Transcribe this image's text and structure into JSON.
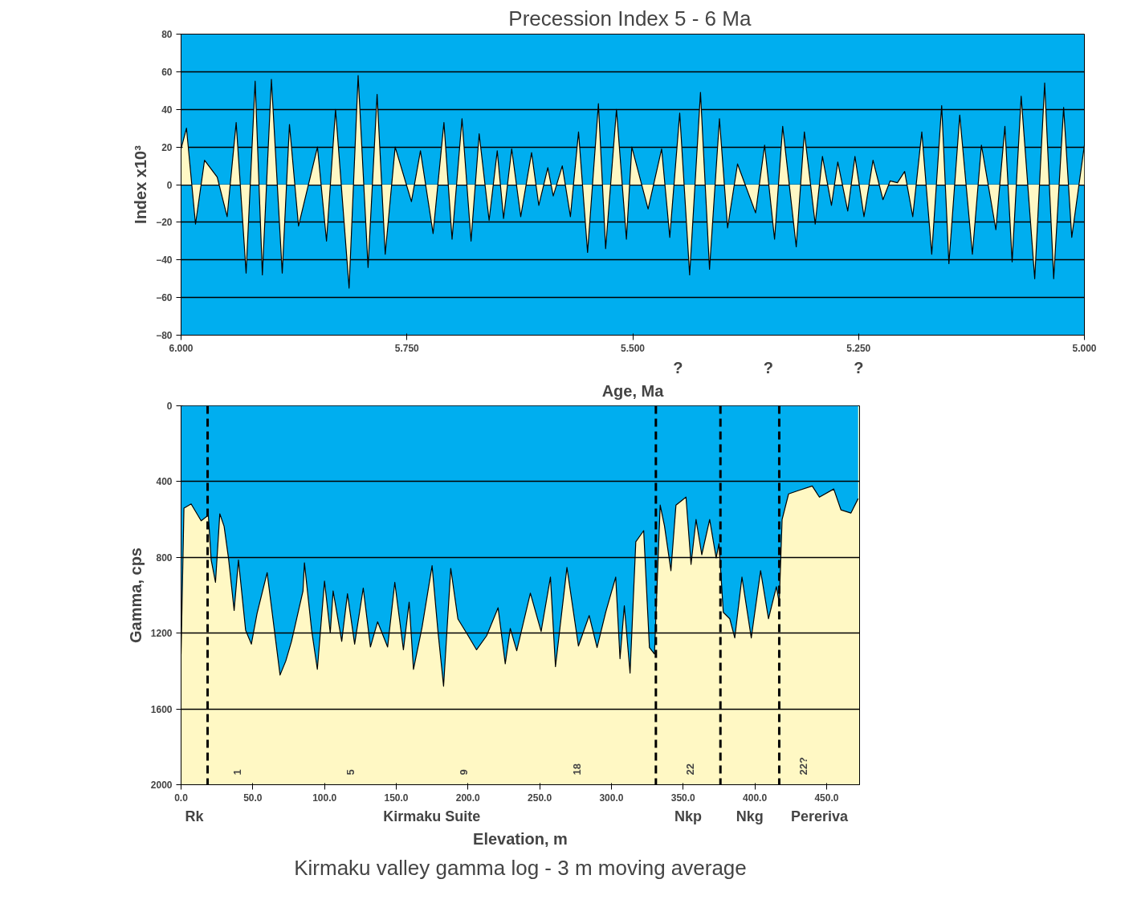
{
  "chart_data": [
    {
      "type": "area",
      "title": "Precession Index  5 - 6 Ma",
      "xlabel": "Age, Ma",
      "ylabel": "Index x10³",
      "x": [
        6.0,
        5.994,
        5.984,
        5.974,
        5.96,
        5.949,
        5.939,
        5.928,
        5.918,
        5.91,
        5.9,
        5.888,
        5.88,
        5.87,
        5.849,
        5.839,
        5.829,
        5.814,
        5.804,
        5.793,
        5.783,
        5.774,
        5.763,
        5.745,
        5.735,
        5.721,
        5.709,
        5.7,
        5.689,
        5.679,
        5.67,
        5.659,
        5.65,
        5.643,
        5.634,
        5.624,
        5.612,
        5.604,
        5.594,
        5.588,
        5.578,
        5.569,
        5.56,
        5.55,
        5.538,
        5.53,
        5.518,
        5.507,
        5.501,
        5.483,
        5.468,
        5.459,
        5.448,
        5.437,
        5.425,
        5.415,
        5.404,
        5.395,
        5.384,
        5.364,
        5.354,
        5.343,
        5.334,
        5.319,
        5.31,
        5.298,
        5.29,
        5.28,
        5.273,
        5.262,
        5.254,
        5.244,
        5.234,
        5.223,
        5.215,
        5.207,
        5.199,
        5.19,
        5.18,
        5.169,
        5.158,
        5.15,
        5.138,
        5.124,
        5.114,
        5.098,
        5.088,
        5.08,
        5.07,
        5.055,
        5.044,
        5.034,
        5.023,
        5.014,
        5.0
      ],
      "series": [
        {
          "color": "#fff8c4",
          "values": [
            19,
            30,
            -21,
            13,
            4,
            -17,
            33,
            -47,
            55,
            -48,
            56,
            -47,
            32,
            -22,
            20,
            -30,
            40,
            -55,
            58,
            -44,
            48,
            -37,
            20,
            -9,
            18,
            -26,
            33,
            -29,
            35,
            -30,
            27,
            -19,
            18,
            -18,
            19,
            -17,
            17,
            -11,
            9,
            -6,
            10,
            -17,
            28,
            -36,
            43,
            -34,
            40,
            -29,
            20,
            -13,
            19,
            -28,
            38,
            -48,
            49,
            -45,
            35,
            -23,
            11,
            -15,
            21,
            -29,
            31,
            -33,
            28,
            -21,
            15,
            -11,
            12,
            -14,
            15,
            -17,
            13,
            -8,
            2,
            1,
            7,
            -17,
            28,
            -37,
            42,
            -42,
            37,
            -37,
            21,
            -24,
            31,
            -41,
            47,
            -50,
            54,
            -50,
            41,
            -28,
            21
          ]
        }
      ],
      "xlim": [
        6.0,
        5.0
      ],
      "xticks": [
        {
          "value": 6.0,
          "label": "6.000"
        },
        {
          "value": 5.75,
          "label": "5.750"
        },
        {
          "value": 5.5,
          "label": "5.500"
        },
        {
          "value": 5.25,
          "label": "5.250"
        },
        {
          "value": 5.0,
          "label": "5.000"
        }
      ],
      "ylim": [
        -80,
        80
      ],
      "yticks": [
        -80,
        -60,
        -40,
        -20,
        0,
        20,
        40,
        60,
        80
      ],
      "grid": "y",
      "annotations": [
        "?",
        "?",
        "?"
      ]
    },
    {
      "type": "area",
      "title": "Kirmaku valley gamma log - 3 m moving average",
      "xlabel": "Elevation, m",
      "ylabel": "Gamma, cps",
      "x": [
        0,
        2,
        7,
        14,
        19,
        21,
        24,
        27,
        30,
        33,
        37,
        40,
        45,
        49,
        53,
        60,
        69,
        73,
        77,
        85,
        86,
        91,
        95,
        100,
        104,
        106,
        112,
        116,
        121,
        127,
        132,
        137,
        144,
        149,
        155,
        159,
        162,
        168,
        175,
        179,
        183,
        188,
        193,
        199,
        206,
        213,
        221,
        226,
        229.5,
        234,
        243.5,
        251,
        257.5,
        261,
        269,
        277,
        284.5,
        290,
        296,
        303,
        306,
        309,
        313,
        317,
        322.5,
        326.5,
        330,
        334,
        337,
        341.5,
        345,
        352,
        355.5,
        359,
        363,
        368.5,
        373,
        375,
        378,
        382.5,
        386,
        391,
        397.5,
        404,
        409.5,
        415,
        417,
        419,
        423.5,
        430,
        440,
        445,
        455,
        460,
        467,
        472
      ],
      "series": [
        {
          "color": "#00aeef",
          "values": [
            1310,
            540,
            518,
            607,
            577,
            814,
            932,
            570,
            636,
            800,
            1080,
            814,
            1184,
            1258,
            1095,
            881,
            1421,
            1347,
            1243,
            977,
            829,
            1184,
            1391,
            925,
            1199,
            977,
            1243,
            992,
            1258,
            962,
            1273,
            1140,
            1273,
            932,
            1288,
            1036,
            1391,
            1169,
            844,
            1184,
            1480,
            858,
            1125,
            1199,
            1288,
            1214,
            1066,
            1362,
            1175,
            1293,
            989,
            1191,
            904,
            1377,
            853,
            1268,
            1107,
            1276,
            1090,
            904,
            1335,
            1056,
            1411,
            718,
            659,
            1276,
            1310,
            524,
            634,
            870,
            524,
            482,
            837,
            600,
            786,
            600,
            803,
            727,
            1090,
            1124,
            1225,
            904,
            1225,
            870,
            1124,
            955,
            1039,
            600,
            465,
            448,
            423,
            482,
            439,
            549,
            566,
            490
          ]
        }
      ],
      "xlim": [
        0,
        473
      ],
      "xticks": [
        {
          "value": 0,
          "label": "0.0"
        },
        {
          "value": 50,
          "label": "50.0"
        },
        {
          "value": 100,
          "label": "100.0"
        },
        {
          "value": 150,
          "label": "150.0"
        },
        {
          "value": 200,
          "label": "200.0"
        },
        {
          "value": 250,
          "label": "250.0"
        },
        {
          "value": 300,
          "label": "300.0"
        },
        {
          "value": 350,
          "label": "350.0"
        },
        {
          "value": 400,
          "label": "400.0"
        },
        {
          "value": 450,
          "label": "450.0"
        }
      ],
      "ylim": [
        2000,
        0
      ],
      "yticks": [
        0,
        400,
        800,
        1200,
        1600,
        2000
      ],
      "grid": "y",
      "ref_lines": [
        {
          "axis": "x",
          "value": 18.5,
          "line_style": "dashed"
        },
        {
          "axis": "x",
          "value": 331,
          "line_style": "dashed"
        },
        {
          "axis": "x",
          "value": 376,
          "line_style": "dashed"
        },
        {
          "axis": "x",
          "value": 417,
          "line_style": "dashed"
        }
      ],
      "annotations": [
        "Rk",
        "Kirmaku Suite",
        "Nkp",
        "Nkg",
        "Pereriva",
        "1",
        "5",
        "9",
        "18",
        "22",
        "22?"
      ]
    }
  ]
}
